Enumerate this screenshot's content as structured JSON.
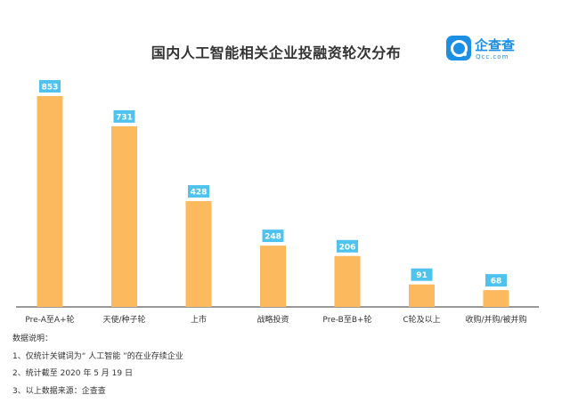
{
  "title": "国内人工智能相关企业投融资轮次分布",
  "logo": {
    "name": "企查查",
    "domain": "Qcc.com",
    "mark_icon": "magnifier-q-icon"
  },
  "colors": {
    "bar": "#FDB95E",
    "label_bg": "#4FC3EE",
    "label_text": "#ffffff",
    "axis": "#333333"
  },
  "notes": [
    "数据说明：",
    "1、仅统计关键词为“ 人工智能 ”的在业存续企业",
    "2、统计截至 2020 年 5 月 19 日",
    "3、以上数据来源：企查查"
  ],
  "chart_data": {
    "type": "bar",
    "title": "国内人工智能相关企业投融资轮次分布",
    "categories": [
      "Pre-A至A+轮",
      "天使/种子轮",
      "上市",
      "战略投资",
      "Pre-B至B+轮",
      "C轮及以上",
      "收购/并购/被并购"
    ],
    "values": [
      853,
      731,
      428,
      248,
      206,
      91,
      68
    ],
    "data_labels": [
      "853",
      "731",
      "428",
      "248",
      "206",
      "91",
      "68"
    ],
    "xlabel": "",
    "ylabel": "",
    "ylim": [
      0,
      900
    ],
    "grid": false,
    "legend": "none"
  }
}
